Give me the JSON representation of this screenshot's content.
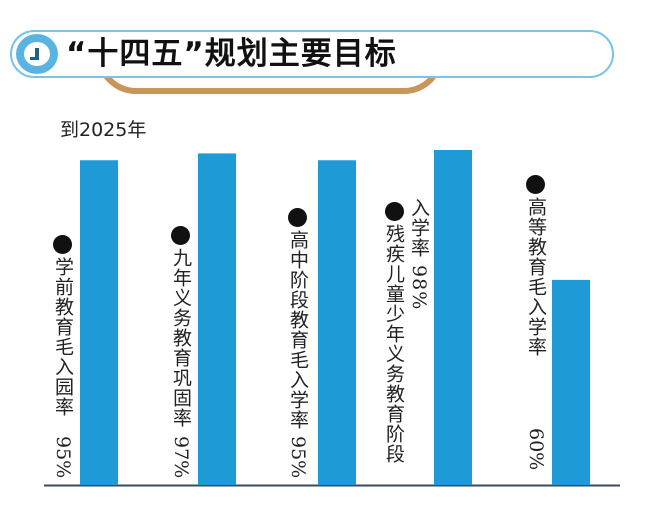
{
  "chart_data": {
    "type": "bar",
    "title": "“十四五”规划主要目标",
    "subtitle": "到2025年",
    "categories": [
      "学前教育毛入园率",
      "九年义务教育巩固率",
      "高中阶段教育毛入学率",
      "残疾儿童少年义务教育阶段入学率",
      "高等教育毛入学率"
    ],
    "values": [
      95,
      97,
      95,
      98,
      60
    ],
    "value_labels": [
      "95%",
      "97%",
      "95%",
      "98%",
      "60%"
    ],
    "units": "%",
    "ylim": [
      0,
      100
    ],
    "grid": false,
    "legend": "none",
    "colors": {
      "bar": "#1e9ad6",
      "axis": "#3a4a5a",
      "accent": "#5ab4e2",
      "arc": "#c8955a"
    }
  }
}
